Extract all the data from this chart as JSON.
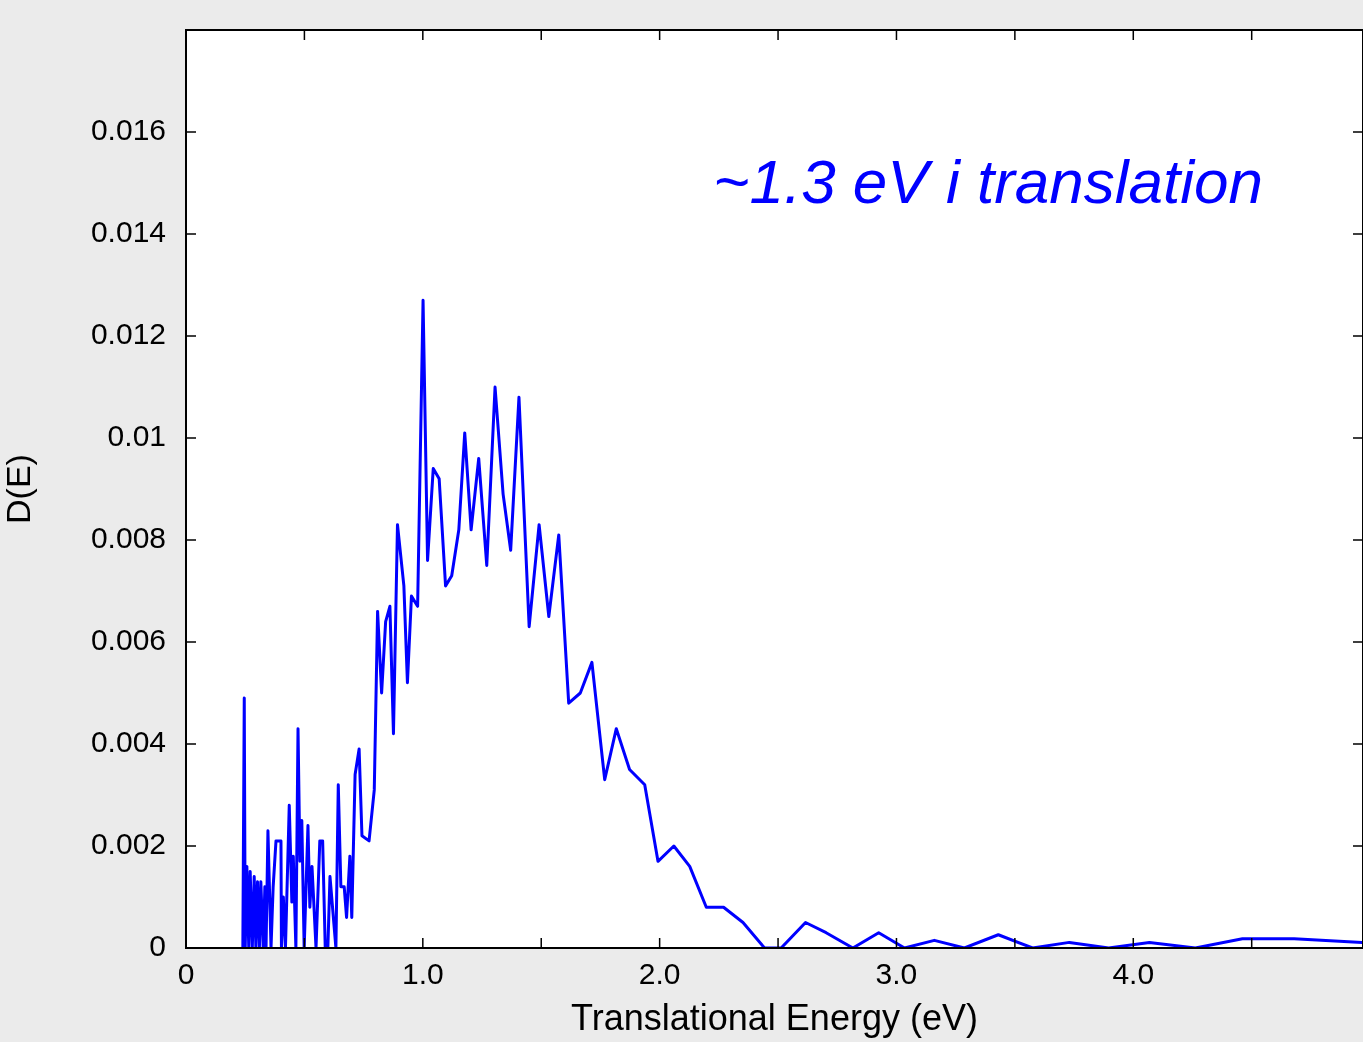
{
  "chart_data": {
    "type": "line",
    "xlabel": "Translational Energy (eV)",
    "ylabel": "D(E)",
    "annotations": [
      "~1.3 eV i translation"
    ],
    "xlim": [
      0,
      4.97
    ],
    "ylim": [
      0,
      0.018
    ],
    "xticks": [
      0,
      {
        "value": 0.5,
        "label": null
      },
      {
        "value": 1,
        "label": "1.0"
      },
      {
        "value": 1.5,
        "label": null
      },
      {
        "value": 2,
        "label": "2.0"
      },
      {
        "value": 2.5,
        "label": null
      },
      {
        "value": 3,
        "label": "3.0"
      },
      {
        "value": 3.5,
        "label": null
      },
      {
        "value": 4,
        "label": "4.0"
      },
      {
        "value": 4.5,
        "label": null
      }
    ],
    "yticks": [
      0,
      0.002,
      0.004,
      0.006,
      0.008,
      0.01,
      0.012,
      0.014,
      0.016
    ],
    "grid": false,
    "legend": false,
    "marker": "none",
    "line_style": "solid",
    "series": [
      {
        "color": "#0000ff",
        "x": [
          0.24,
          0.246,
          0.25,
          0.257,
          0.265,
          0.271,
          0.28,
          0.288,
          0.295,
          0.302,
          0.31,
          0.316,
          0.326,
          0.333,
          0.338,
          0.346,
          0.359,
          0.368,
          0.38,
          0.401,
          0.403,
          0.411,
          0.42,
          0.436,
          0.447,
          0.453,
          0.464,
          0.473,
          0.481,
          0.489,
          0.499,
          0.515,
          0.523,
          0.532,
          0.549,
          0.565,
          0.577,
          0.588,
          0.599,
          0.608,
          0.633,
          0.643,
          0.654,
          0.668,
          0.678,
          0.692,
          0.7,
          0.714,
          0.731,
          0.743,
          0.773,
          0.795,
          0.809,
          0.826,
          0.843,
          0.861,
          0.876,
          0.893,
          0.92,
          0.935,
          0.952,
          0.978,
          1.001,
          1.02,
          1.044,
          1.069,
          1.096,
          1.122,
          1.152,
          1.177,
          1.204,
          1.236,
          1.27,
          1.305,
          1.339,
          1.371,
          1.406,
          1.449,
          1.491,
          1.532,
          1.574,
          1.616,
          1.665,
          1.714,
          1.768,
          1.817,
          1.873,
          1.937,
          1.993,
          2.06,
          2.127,
          2.197,
          2.27,
          2.352,
          2.443,
          2.513,
          2.616,
          2.703,
          2.816,
          2.925,
          3.034,
          3.16,
          3.287,
          3.43,
          3.575,
          3.73,
          3.896,
          4.068,
          4.262,
          4.461,
          4.679,
          4.966
        ],
        "values": [
          0,
          0.0049,
          0,
          0.0016,
          0,
          0.0015,
          0,
          0.0014,
          0,
          0.0013,
          0,
          0.0013,
          0,
          0.0012,
          0,
          0.0023,
          0,
          0.0012,
          0.0021,
          0.0021,
          0,
          0.001,
          0,
          0.0028,
          0.0009,
          0.0018,
          0,
          0.0043,
          0.0017,
          0.0025,
          0,
          0.0024,
          0.0008,
          0.0016,
          0,
          0.0021,
          0.0021,
          0,
          0,
          0.0014,
          0,
          0.0032,
          0.0012,
          0.0012,
          0.0006,
          0.0018,
          0.0006,
          0.0034,
          0.0039,
          0.0022,
          0.0021,
          0.0031,
          0.0066,
          0.005,
          0.0064,
          0.0067,
          0.0042,
          0.0083,
          0.0071,
          0.0052,
          0.0069,
          0.0067,
          0.0127,
          0.0076,
          0.0094,
          0.0092,
          0.0071,
          0.0073,
          0.0082,
          0.0101,
          0.0082,
          0.0096,
          0.0075,
          0.011,
          0.0089,
          0.0078,
          0.0108,
          0.0063,
          0.0083,
          0.0065,
          0.0081,
          0.0048,
          0.005,
          0.0056,
          0.0033,
          0.0043,
          0.0035,
          0.0032,
          0.0017,
          0.002,
          0.0016,
          0.0008,
          0.0008,
          0.0005,
          0,
          0,
          0.0005,
          0.0003,
          0,
          0.0003,
          0,
          0.00015,
          0,
          0.00026,
          0,
          0.00011,
          0,
          0.00011,
          0,
          0.00018,
          0.00018,
          0.00011
        ]
      }
    ]
  }
}
